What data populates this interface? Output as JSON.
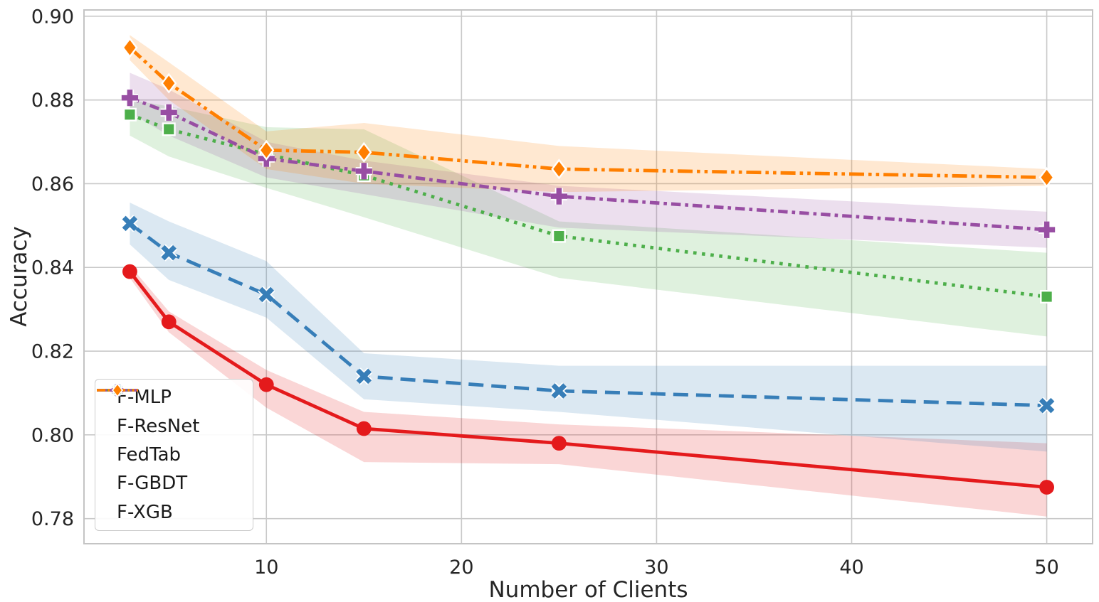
{
  "chart_data": {
    "type": "line",
    "title": "",
    "xlabel": "Number of Clients",
    "ylabel": "Accuracy",
    "x": [
      3,
      5,
      10,
      15,
      25,
      50
    ],
    "xlim": [
      0.65,
      52.35
    ],
    "ylim": [
      0.774,
      0.9015
    ],
    "xticks": [
      10,
      20,
      30,
      40,
      50
    ],
    "yticks": [
      0.78,
      0.8,
      0.82,
      0.84,
      0.86,
      0.88,
      0.9
    ],
    "xtick_labels": [
      "10",
      "20",
      "30",
      "40",
      "50"
    ],
    "ytick_labels": [
      "0.78",
      "0.80",
      "0.82",
      "0.84",
      "0.86",
      "0.88",
      "0.90"
    ],
    "grid": true,
    "legend_position": "lower-left",
    "series": [
      {
        "name": "F-MLP",
        "color": "#e41a1c",
        "linestyle": "solid",
        "marker": "circle",
        "values": [
          0.839,
          0.827,
          0.812,
          0.8015,
          0.798,
          0.7875
        ],
        "band_lower": [
          0.8375,
          0.8245,
          0.8065,
          0.7935,
          0.793,
          0.7805
        ],
        "band_upper": [
          0.8405,
          0.8295,
          0.8155,
          0.8055,
          0.8025,
          0.798
        ]
      },
      {
        "name": "F-ResNet",
        "color": "#377eb8",
        "linestyle": "dashed",
        "marker": "x",
        "values": [
          0.8505,
          0.8435,
          0.8335,
          0.814,
          0.8105,
          0.807
        ],
        "band_lower": [
          0.8455,
          0.837,
          0.828,
          0.8085,
          0.8055,
          0.796
        ],
        "band_upper": [
          0.8555,
          0.851,
          0.8415,
          0.8195,
          0.8165,
          0.8165
        ]
      },
      {
        "name": "FedTab",
        "color": "#4daf4a",
        "linestyle": "dotted",
        "marker": "square",
        "values": [
          0.8765,
          0.873,
          0.867,
          0.862,
          0.8475,
          0.833
        ],
        "band_lower": [
          0.8715,
          0.8665,
          0.859,
          0.852,
          0.8375,
          0.8235
        ],
        "band_upper": [
          0.88,
          0.8785,
          0.8735,
          0.873,
          0.851,
          0.8435
        ]
      },
      {
        "name": "F-GBDT",
        "color": "#984ea3",
        "linestyle": "dashdot",
        "marker": "plus",
        "values": [
          0.8805,
          0.877,
          0.866,
          0.863,
          0.857,
          0.849
        ],
        "band_lower": [
          0.877,
          0.8715,
          0.8615,
          0.8575,
          0.8495,
          0.8447
        ],
        "band_upper": [
          0.8865,
          0.8825,
          0.87,
          0.8655,
          0.8595,
          0.8533
        ]
      },
      {
        "name": "F-XGB",
        "color": "#ff7f00",
        "linestyle": "dashdotdot",
        "marker": "diamond",
        "values": [
          0.8925,
          0.884,
          0.868,
          0.8675,
          0.8635,
          0.8615
        ],
        "band_lower": [
          0.8895,
          0.88,
          0.8635,
          0.86,
          0.858,
          0.8595
        ],
        "band_upper": [
          0.8955,
          0.889,
          0.8725,
          0.8745,
          0.869,
          0.8635
        ]
      }
    ],
    "style": {
      "grid_color": "#c9c9c9",
      "spine_color": "#c4c4c4",
      "tick_label_color": "#262626",
      "band_opacity": 0.18,
      "background": "#ffffff"
    }
  }
}
